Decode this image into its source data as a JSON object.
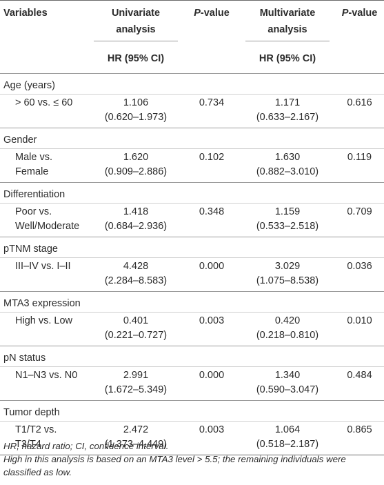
{
  "header": {
    "variables": "Variables",
    "univariate": "Univariate analysis",
    "p_value_1": "P",
    "p_value_1_suffix": "-value",
    "multivariate": "Multivariate analysis",
    "p_value_2": "P",
    "p_value_2_suffix": "-value",
    "hr_uni": "HR (95% CI)",
    "hr_multi": "HR (95% CI)"
  },
  "groups": [
    {
      "name": "Age (years)",
      "row": {
        "label": "> 60 vs. ≤ 60",
        "uni_hr": "1.106",
        "uni_ci": "(0.620–1.973)",
        "uni_p": "0.734",
        "multi_hr": "1.171",
        "multi_ci": "(0.633–2.167)",
        "multi_p": "0.616"
      }
    },
    {
      "name": "Gender",
      "row": {
        "label": "Male vs. Female",
        "uni_hr": "1.620",
        "uni_ci": "(0.909–2.886)",
        "uni_p": "0.102",
        "multi_hr": "1.630",
        "multi_ci": "(0.882–3.010)",
        "multi_p": "0.119"
      }
    },
    {
      "name": "Differentiation",
      "row": {
        "label": "Poor vs. Well/Moderate",
        "uni_hr": "1.418",
        "uni_ci": "(0.684–2.936)",
        "uni_p": "0.348",
        "multi_hr": "1.159",
        "multi_ci": "(0.533–2.518)",
        "multi_p": "0.709"
      }
    },
    {
      "name": "pTNM stage",
      "row": {
        "label": "III–IV vs. I–II",
        "uni_hr": "4.428",
        "uni_ci": "(2.284–8.583)",
        "uni_p": "0.000",
        "multi_hr": "3.029",
        "multi_ci": "(1.075–8.538)",
        "multi_p": "0.036"
      }
    },
    {
      "name": "MTA3 expression",
      "row": {
        "label": "High vs. Low",
        "uni_hr": "0.401",
        "uni_ci": "(0.221–0.727)",
        "uni_p": "0.003",
        "multi_hr": "0.420",
        "multi_ci": "(0.218–0.810)",
        "multi_p": "0.010"
      }
    },
    {
      "name": "pN status",
      "row": {
        "label": "N1–N3 vs. N0",
        "uni_hr": "2.991",
        "uni_ci": "(1.672–5.349)",
        "uni_p": "0.000",
        "multi_hr": "1.340",
        "multi_ci": "(0.590–3.047)",
        "multi_p": "0.484"
      }
    },
    {
      "name": "Tumor depth",
      "row": {
        "label": "T1/T2 vs. T3/T4",
        "uni_hr": "2.472",
        "uni_ci": "(1.373–4.449)",
        "uni_p": "0.003",
        "multi_hr": "1.064",
        "multi_ci": "(0.518–2.187)",
        "multi_p": "0.865"
      }
    }
  ],
  "footnotes": {
    "abbrev": "HR, hazard ratio; CI, confidence interval.",
    "note": "High in this analysis is based on an MTA3 level > 5.5; the remaining individuals were classified as low."
  }
}
